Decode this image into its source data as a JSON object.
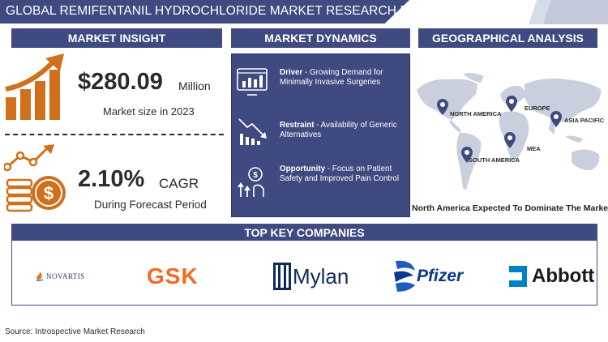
{
  "title": "GLOBAL REMIFENTANIL HYDROCHLORIDE MARKET RESEARCH REPORT",
  "sections": {
    "insight": "MARKET INSIGHT",
    "dynamics": "MARKET DYNAMICS",
    "geo": "GEOGRAPHICAL ANALYSIS",
    "companies": "TOP KEY COMPANIES"
  },
  "insight": {
    "market_size_value": "$280.09",
    "market_size_unit": "Million",
    "market_size_caption": "Market size in 2023",
    "cagr_value": "2.10%",
    "cagr_unit": "CAGR",
    "cagr_caption": "During Forecast Period"
  },
  "dynamics": [
    {
      "label": "Driver",
      "text": " - Growing Demand for Minimally Invasive Surgeries",
      "icon": "monitor-chart-icon"
    },
    {
      "label": "Restraint",
      "text": " - Availability of Generic Alternatives",
      "icon": "declining-bars-icon"
    },
    {
      "label": "Opportunity",
      "text": " - Focus on Patient Safety and Improved Pain Control",
      "icon": "dollar-growth-icon"
    }
  ],
  "geo": {
    "regions": [
      "NORTH AMERICA",
      "EUROPE",
      "ASIA PACIFIC",
      "MEA",
      "SOUTH AMERICA"
    ],
    "caption": "North America Expected To Dominate The Market"
  },
  "companies": [
    "NOVARTIS",
    "GSK",
    "Mylan",
    "Pfizer",
    "Abbott"
  ],
  "source": "Source: Introspective Market Research",
  "colors": {
    "navy": "#3f4a80",
    "orange": "#d0701a",
    "map_gray": "#c9cfdd"
  }
}
